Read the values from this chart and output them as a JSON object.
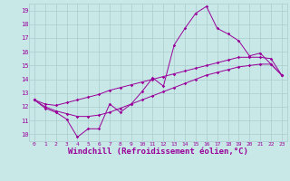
{
  "xlabel": "Windchill (Refroidissement éolien,°C)",
  "x_values": [
    0,
    1,
    2,
    3,
    4,
    5,
    6,
    7,
    8,
    9,
    10,
    11,
    12,
    13,
    14,
    15,
    16,
    17,
    18,
    19,
    20,
    21,
    22,
    23
  ],
  "line1_y": [
    12.5,
    11.9,
    11.6,
    11.1,
    9.8,
    10.4,
    10.4,
    12.2,
    11.6,
    12.2,
    13.1,
    14.1,
    13.5,
    16.5,
    17.7,
    18.8,
    19.3,
    17.7,
    17.3,
    16.8,
    15.7,
    15.9,
    15.1,
    14.3
  ],
  "line2_y": [
    12.5,
    12.2,
    12.1,
    12.3,
    12.5,
    12.7,
    12.9,
    13.2,
    13.4,
    13.6,
    13.8,
    14.0,
    14.2,
    14.4,
    14.6,
    14.8,
    15.0,
    15.2,
    15.4,
    15.6,
    15.6,
    15.6,
    15.5,
    14.3
  ],
  "line3_y": [
    12.5,
    12.0,
    11.7,
    11.5,
    11.3,
    11.3,
    11.4,
    11.6,
    11.9,
    12.2,
    12.5,
    12.8,
    13.1,
    13.4,
    13.7,
    14.0,
    14.3,
    14.5,
    14.7,
    14.9,
    15.0,
    15.1,
    15.1,
    14.3
  ],
  "line_color": "#990099",
  "bg_color": "#c8e8e8",
  "grid_color": "#aacccc",
  "xlim": [
    -0.5,
    23.5
  ],
  "ylim": [
    9.5,
    19.5
  ],
  "yticks": [
    10,
    11,
    12,
    13,
    14,
    15,
    16,
    17,
    18,
    19
  ],
  "xticks": [
    0,
    1,
    2,
    3,
    4,
    5,
    6,
    7,
    8,
    9,
    10,
    11,
    12,
    13,
    14,
    15,
    16,
    17,
    18,
    19,
    20,
    21,
    22,
    23
  ]
}
